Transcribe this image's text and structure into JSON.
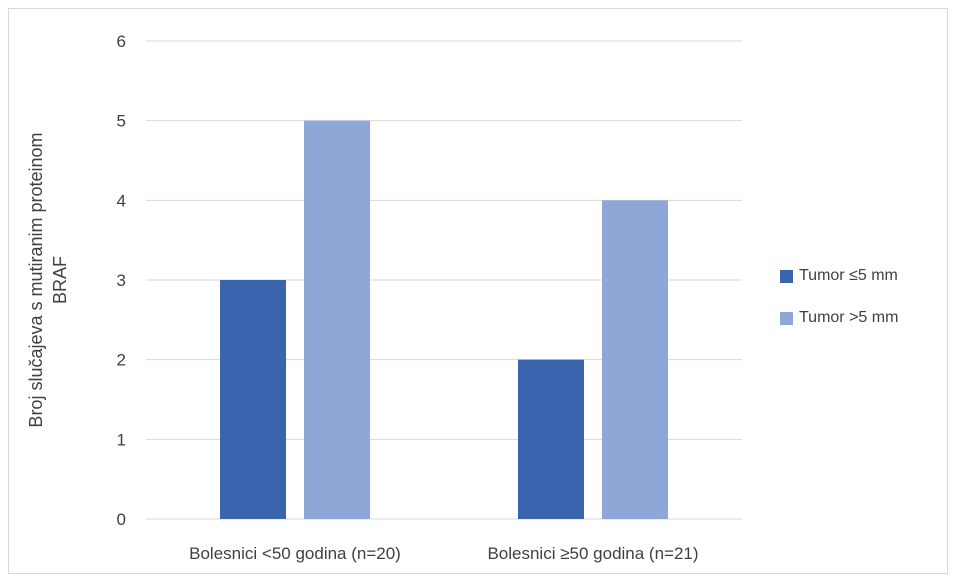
{
  "chart_data": {
    "type": "bar",
    "categories": [
      "Bolesnici <50 godina (n=20)",
      "Bolesnici ≥50 godina (n=21)"
    ],
    "series": [
      {
        "name": "Tumor ≤5 mm",
        "values": [
          3,
          2
        ],
        "color": "#3b64ae"
      },
      {
        "name": "Tumor >5 mm",
        "values": [
          5,
          4
        ],
        "color": "#8fa7d6"
      }
    ],
    "title": "",
    "xlabel": "",
    "ylabel_lines": [
      "Broj slučajeva s mutiranim proteinom",
      "BRAF"
    ],
    "ylim": [
      0,
      6
    ],
    "yticks": [
      0,
      1,
      2,
      3,
      4,
      5,
      6
    ],
    "grid": true,
    "legend_position": "right"
  }
}
